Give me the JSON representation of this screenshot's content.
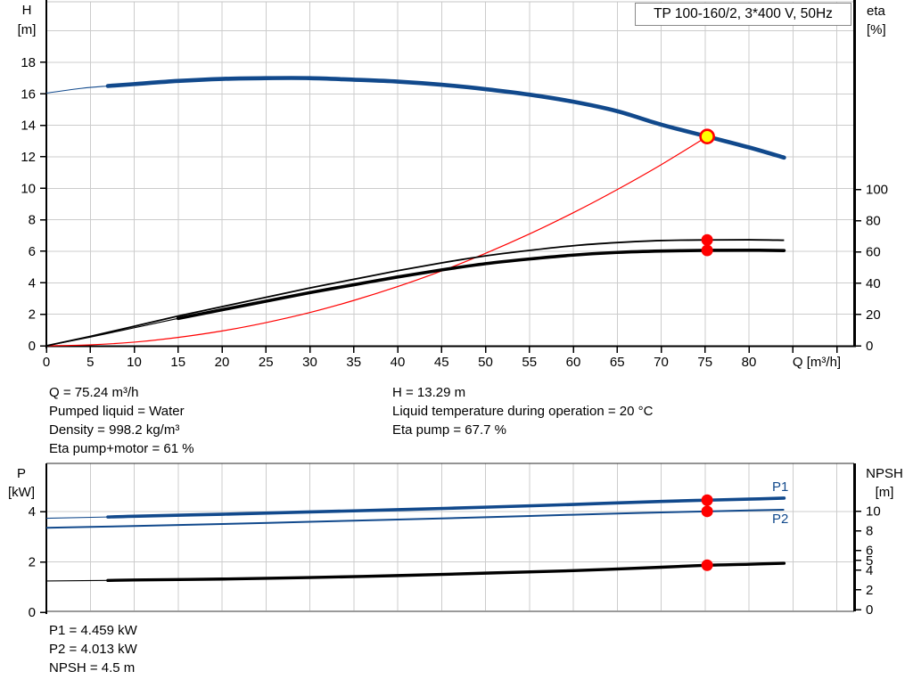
{
  "title_box": "TP 100-160/2, 3*400 V, 50Hz",
  "colors": {
    "curve_blue": "#11498c",
    "curve_black": "#000000",
    "curve_red": "#ff0000",
    "marker_red": "#ff0000",
    "duty_yellow": "#ffff00",
    "grid": "#cccccc",
    "axis": "#000000",
    "top_border": "#c4c4c4",
    "bottom_border": "#9a9a9a",
    "frame_dark": "#2a2a2a",
    "text": "#000000"
  },
  "chart_data": [
    {
      "type": "line",
      "title": "TP 100-160/2, 3*400 V, 50Hz",
      "x_axis": {
        "label": "Q [m³/h]",
        "min": 0,
        "max": 92,
        "grid_step": 5,
        "tick_step": 5,
        "tick_max": 90,
        "labeled_tick_max": 80
      },
      "left_axis": {
        "name": "H",
        "unit": "[m]",
        "min": 0,
        "ticks": [
          0,
          2,
          4,
          6,
          8,
          10,
          12,
          14,
          16,
          18
        ],
        "grid": [
          2,
          4,
          6,
          8,
          10,
          12,
          14,
          16,
          18,
          20
        ]
      },
      "right_axis": {
        "name": "eta",
        "unit": "[%]",
        "min": 0,
        "ticks": [
          0,
          20,
          40,
          60,
          80,
          100
        ]
      },
      "series": [
        {
          "name": "pump-head-curve",
          "axis": "left",
          "color": "#11498c",
          "width": 4.6,
          "thin_lead_until": 7,
          "points": [
            [
              0,
              16.05
            ],
            [
              4,
              16.35
            ],
            [
              7,
              16.5
            ],
            [
              10,
              16.62
            ],
            [
              15,
              16.82
            ],
            [
              20,
              16.95
            ],
            [
              25,
              17.0
            ],
            [
              30,
              17.0
            ],
            [
              35,
              16.9
            ],
            [
              40,
              16.78
            ],
            [
              45,
              16.58
            ],
            [
              50,
              16.3
            ],
            [
              55,
              15.95
            ],
            [
              60,
              15.5
            ],
            [
              65,
              14.9
            ],
            [
              70,
              14.05
            ],
            [
              75.24,
              13.29
            ],
            [
              80,
              12.6
            ],
            [
              84,
              11.95
            ]
          ]
        },
        {
          "name": "system-curve",
          "axis": "left",
          "color": "#ff0000",
          "width": 1.2,
          "points": [
            [
              0,
              0
            ],
            [
              5,
              0.06
            ],
            [
              10,
              0.23
            ],
            [
              15,
              0.53
            ],
            [
              20,
              0.94
            ],
            [
              25,
              1.47
            ],
            [
              30,
              2.11
            ],
            [
              35,
              2.88
            ],
            [
              40,
              3.76
            ],
            [
              45,
              4.75
            ],
            [
              50,
              5.87
            ],
            [
              55,
              7.1
            ],
            [
              60,
              8.45
            ],
            [
              65,
              9.92
            ],
            [
              70,
              11.5
            ],
            [
              75.24,
              13.29
            ]
          ]
        },
        {
          "name": "eta-pump-curve",
          "axis": "right",
          "color": "#000000",
          "width": 1.8,
          "points": [
            [
              0,
              0
            ],
            [
              5,
              6
            ],
            [
              10,
              12.5
            ],
            [
              15,
              19
            ],
            [
              20,
              25
            ],
            [
              25,
              31
            ],
            [
              30,
              37
            ],
            [
              35,
              42.5
            ],
            [
              40,
              48
            ],
            [
              45,
              53
            ],
            [
              50,
              57.5
            ],
            [
              55,
              61
            ],
            [
              60,
              64
            ],
            [
              65,
              66
            ],
            [
              70,
              67.3
            ],
            [
              75.24,
              67.7
            ],
            [
              80,
              67.8
            ],
            [
              84,
              67.5
            ]
          ]
        },
        {
          "name": "eta-pump-motor-curve",
          "axis": "right",
          "color": "#000000",
          "width": 3.6,
          "thin_lead_until": 12,
          "points": [
            [
              0,
              0
            ],
            [
              5,
              5.5
            ],
            [
              10,
              11.5
            ],
            [
              15,
              17.5
            ],
            [
              20,
              23
            ],
            [
              25,
              28.5
            ],
            [
              30,
              34
            ],
            [
              35,
              39
            ],
            [
              40,
              44
            ],
            [
              45,
              48.5
            ],
            [
              50,
              52.5
            ],
            [
              55,
              55.5
            ],
            [
              60,
              58
            ],
            [
              65,
              59.7
            ],
            [
              70,
              60.6
            ],
            [
              75.24,
              61
            ],
            [
              80,
              61.1
            ],
            [
              84,
              60.9
            ]
          ]
        }
      ],
      "markers": [
        {
          "name": "duty-point",
          "axis": "left",
          "q": 75.24,
          "value": 13.29,
          "style": "ring"
        },
        {
          "name": "eta-pump-point",
          "axis": "right",
          "q": 75.24,
          "value": 67.7,
          "style": "dot"
        },
        {
          "name": "eta-pump-motor-point",
          "axis": "right",
          "q": 75.24,
          "value": 61,
          "style": "dot"
        }
      ]
    },
    {
      "type": "line",
      "x_axis": {
        "label": "",
        "min": 0,
        "max": 92,
        "grid_step": 5
      },
      "left_axis": {
        "name": "P",
        "unit": "[kW]",
        "min": 0,
        "ticks": [
          0,
          2,
          4
        ],
        "grid": [
          2,
          4
        ]
      },
      "right_axis": {
        "name": "NPSH",
        "unit": "[m]",
        "min": 0,
        "ticks": [
          0,
          2,
          4,
          5,
          6,
          8,
          10
        ]
      },
      "series": [
        {
          "name": "p1-curve",
          "label": "P1",
          "axis": "left",
          "color": "#11498c",
          "width": 3.6,
          "thin_lead_until": 7,
          "points": [
            [
              0,
              3.74
            ],
            [
              7,
              3.79
            ],
            [
              10,
              3.82
            ],
            [
              20,
              3.9
            ],
            [
              30,
              3.99
            ],
            [
              40,
              4.08
            ],
            [
              50,
              4.18
            ],
            [
              60,
              4.29
            ],
            [
              70,
              4.41
            ],
            [
              75.24,
              4.459
            ],
            [
              80,
              4.5
            ],
            [
              84,
              4.54
            ]
          ]
        },
        {
          "name": "p2-curve",
          "label": "P2",
          "axis": "left",
          "color": "#11498c",
          "width": 2,
          "points": [
            [
              0,
              3.36
            ],
            [
              10,
              3.43
            ],
            [
              20,
              3.51
            ],
            [
              30,
              3.6
            ],
            [
              40,
              3.69
            ],
            [
              50,
              3.78
            ],
            [
              60,
              3.88
            ],
            [
              70,
              3.97
            ],
            [
              75.24,
              4.013
            ],
            [
              80,
              4.05
            ],
            [
              84,
              4.08
            ]
          ]
        },
        {
          "name": "npsh-curve",
          "axis": "right",
          "color": "#000000",
          "width": 3.4,
          "thin_lead_until": 7,
          "points": [
            [
              0,
              2.9
            ],
            [
              7,
              2.96
            ],
            [
              10,
              3.0
            ],
            [
              20,
              3.1
            ],
            [
              30,
              3.25
            ],
            [
              40,
              3.45
            ],
            [
              50,
              3.7
            ],
            [
              60,
              3.95
            ],
            [
              70,
              4.3
            ],
            [
              75.24,
              4.5
            ],
            [
              80,
              4.6
            ],
            [
              84,
              4.7
            ]
          ]
        }
      ],
      "markers": [
        {
          "name": "p1-point",
          "axis": "left",
          "q": 75.24,
          "value": 4.459,
          "style": "dot"
        },
        {
          "name": "p2-point",
          "axis": "left",
          "q": 75.24,
          "value": 4.013,
          "style": "dot"
        },
        {
          "name": "npsh-point",
          "axis": "right",
          "q": 75.24,
          "value": 4.5,
          "style": "dot"
        }
      ]
    }
  ],
  "info_block": {
    "col1": [
      "Q = 75.24 m³/h",
      "Pumped liquid = Water",
      "Density = 998.2 kg/m³",
      "Eta pump+motor = 61 %"
    ],
    "col2": [
      "H = 13.29 m",
      "Liquid temperature during operation = 20 °C",
      "Eta pump = 67.7 %"
    ]
  },
  "result_block": [
    "P1 = 4.459 kW",
    "P2 = 4.013 kW",
    "NPSH = 4.5 m"
  ]
}
